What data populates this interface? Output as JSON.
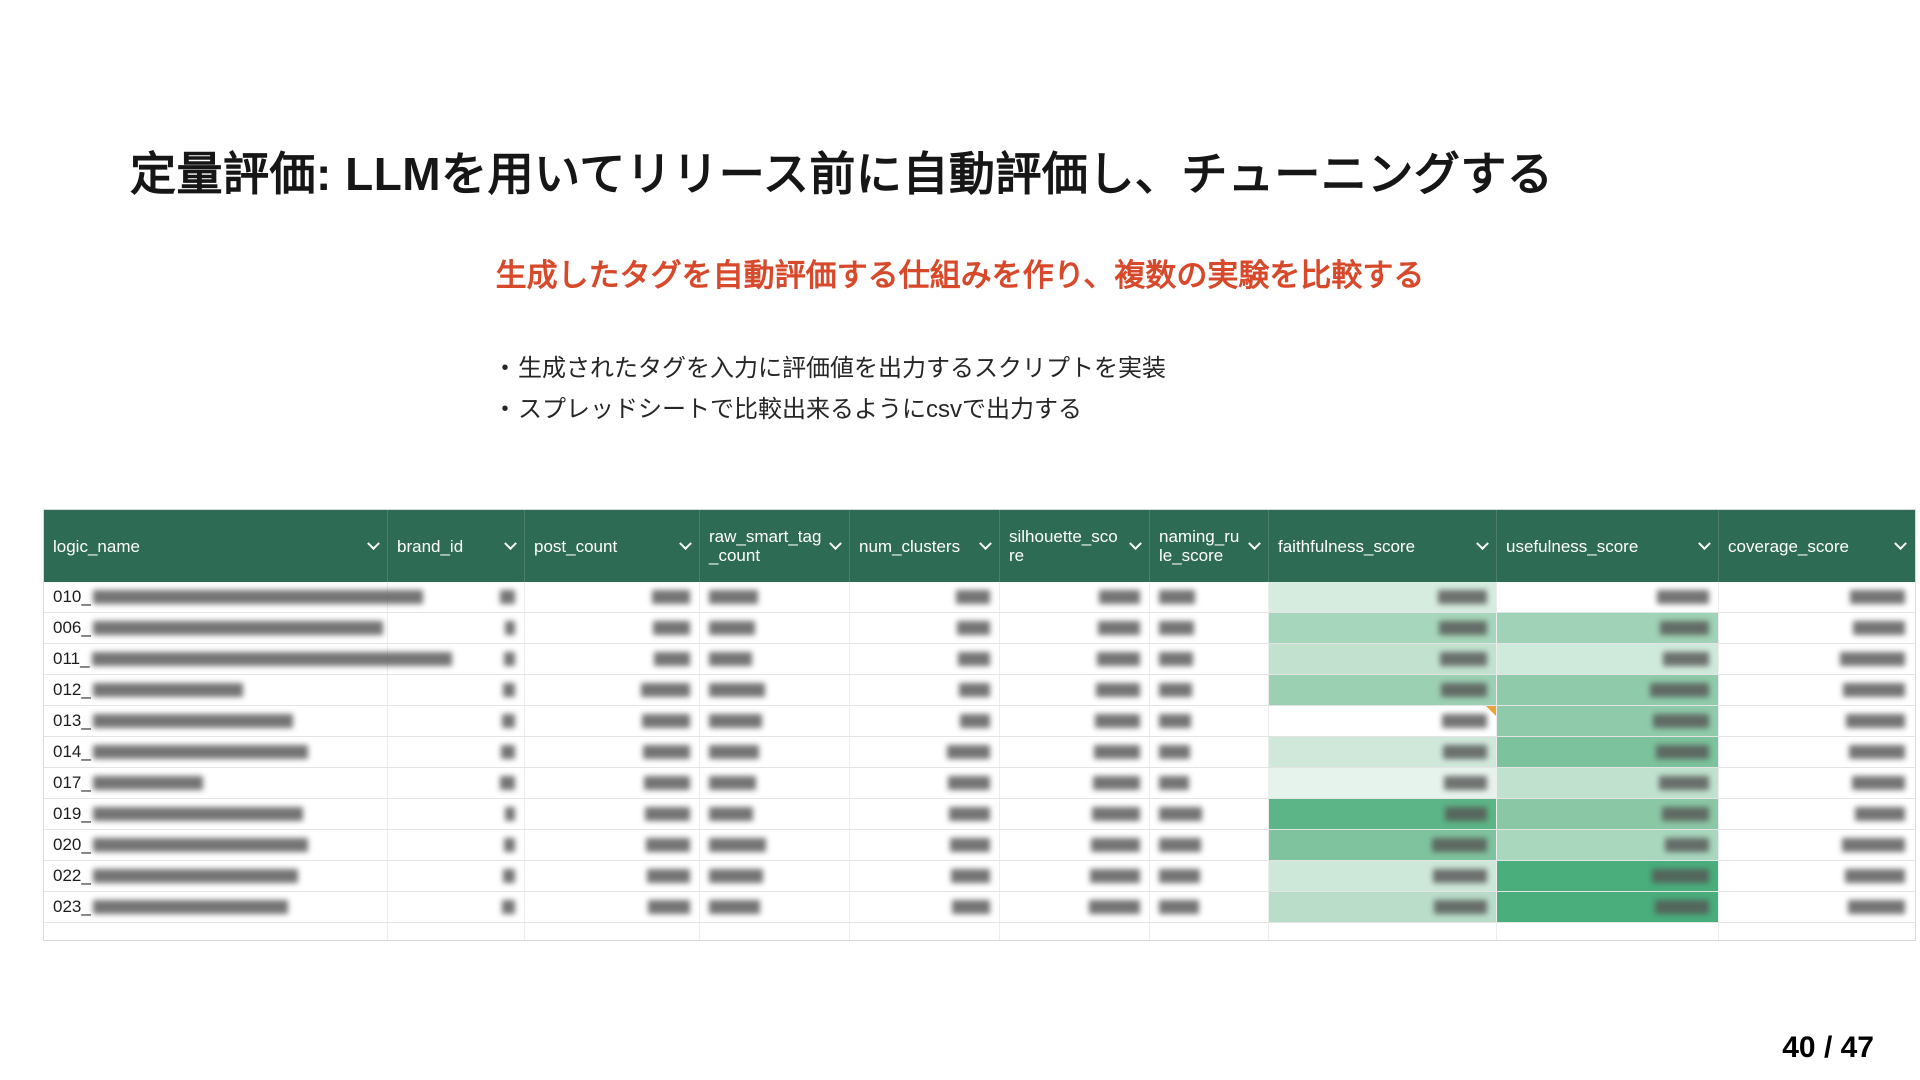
{
  "slide": {
    "title": "定量評価: LLMを用いてリリース前に自動評価し、チューニングする",
    "subtitle": "生成したタグを自動評価する仕組みを作り、複数の実験を比較する",
    "bullets": [
      "生成されたタグを入力に評価値を出力するスクリプトを実装",
      "スプレッドシートで比較出来るようにcsvで出力する"
    ],
    "page_number": "40 / 47"
  },
  "colors": {
    "header_green": "#2e6b54",
    "accent_orange": "#d8492b",
    "green_scale_max": "#49ad7c",
    "note_marker_orange": "#e9a33b"
  },
  "table": {
    "columns": [
      {
        "label": "logic_name"
      },
      {
        "label": "brand_id"
      },
      {
        "label": "post_count"
      },
      {
        "label": "raw_smart_tag_count"
      },
      {
        "label": "num_clusters"
      },
      {
        "label": "silhouette_score"
      },
      {
        "label": "naming_rule_score"
      },
      {
        "label": "faithfulness_score"
      },
      {
        "label": "usefulness_score"
      },
      {
        "label": "coverage_score"
      }
    ],
    "rows": [
      {
        "prefix": "010_",
        "faithfulness_bg": "#d6ecdf",
        "usefulness_bg": "#ffffff",
        "note": false
      },
      {
        "prefix": "006_",
        "faithfulness_bg": "#a6d6bc",
        "usefulness_bg": "#9fd2b6",
        "note": false
      },
      {
        "prefix": "011_",
        "faithfulness_bg": "#c2e2cf",
        "usefulness_bg": "#cfe9da",
        "note": false
      },
      {
        "prefix": "012_",
        "faithfulness_bg": "#9cd0b3",
        "usefulness_bg": "#8fcaaa",
        "note": false
      },
      {
        "prefix": "013_",
        "faithfulness_bg": "#ffffff",
        "usefulness_bg": "#8fcaaa",
        "note": true
      },
      {
        "prefix": "014_",
        "faithfulness_bg": "#cfe8da",
        "usefulness_bg": "#7cc29c",
        "note": false
      },
      {
        "prefix": "017_",
        "faithfulness_bg": "#e6f3ec",
        "usefulness_bg": "#bfe1cd",
        "note": false
      },
      {
        "prefix": "019_",
        "faithfulness_bg": "#5cb586",
        "usefulness_bg": "#8ac7a5",
        "note": false
      },
      {
        "prefix": "020_",
        "faithfulness_bg": "#7fc39e",
        "usefulness_bg": "#a8d7be",
        "note": false
      },
      {
        "prefix": "022_",
        "faithfulness_bg": "#cde7d8",
        "usefulness_bg": "#49ad7c",
        "note": false
      },
      {
        "prefix": "023_",
        "faithfulness_bg": "#b9ddc9",
        "usefulness_bg": "#49ad7c",
        "note": false
      }
    ]
  }
}
